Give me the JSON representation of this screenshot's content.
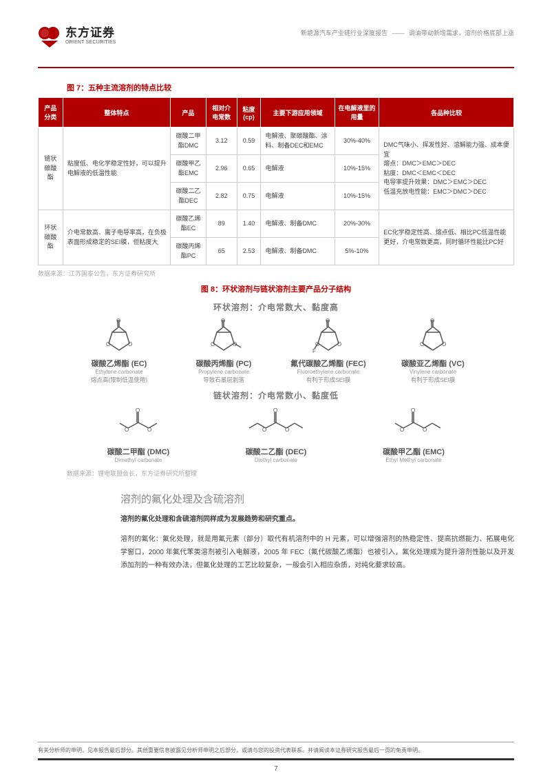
{
  "header": {
    "logo_cn": "东方证券",
    "logo_en": "ORIENT SECURITIES",
    "doc_title_left": "新能源汽车产业链行业深度报告",
    "doc_title_right": "调油带动新增需求，溶剂价格底部上涨"
  },
  "figure7": {
    "caption": "图 7：五种主流溶剂的特点比较",
    "columns": [
      "产品分类",
      "整体特点",
      "产品",
      "相对介电常数",
      "粘度(cp)",
      "主要下游应用领域",
      "在电解液里的用量",
      "各品种比较"
    ],
    "groups": [
      {
        "cat": "链状碳酸酯",
        "trait": "粘度低、电化学稳定性好，可以提升电解液的低温性能",
        "rows": [
          {
            "name": "碳酸二甲酯DMC",
            "perm": "3.12",
            "visc": "0.59",
            "app": "电解液、聚碳酸酯、涂料、制备DEC和EMC",
            "usage": "30%-40%"
          },
          {
            "name": "碳酸甲乙酯EMC",
            "perm": "2.96",
            "visc": "0.65",
            "app": "电解液",
            "usage": "10%-15%"
          },
          {
            "name": "碳酸二乙酯DEC",
            "perm": "2.82",
            "visc": "0.75",
            "app": "电解液",
            "usage": "10%-15%"
          }
        ],
        "compare": "DMC气味小、挥发性好、溶解能力强、成本便宜\n熔点：DMC＞EMC＞DEC\n粘度：DMC＜EMC＜DEC\n电导率提升效果：DMC＞EMC＞DEC\n低温充放电性能：EMC＞DMC＞DEC"
      },
      {
        "cat": "环状碳酸酯",
        "trait": "介电常数高、离子电导率高，在负极表面形成稳定的SEI膜，但粘度大",
        "rows": [
          {
            "name": "碳酸乙烯酯EC",
            "perm": "89",
            "visc": "1.40",
            "app": "电解液、制备DMC",
            "usage": "20%-30%"
          },
          {
            "name": "碳酸丙烯酯PC",
            "perm": "65",
            "visc": "2.53",
            "app": "电解液、制备DMC",
            "usage": "5%-10%"
          }
        ],
        "compare": "EC化学稳定性高、熔点低、相比PC低温性能更好，介电常数更高，同时循环性能比PC好"
      }
    ],
    "source": "数据来源：江苏国泰公告，东方证券研究所"
  },
  "figure8": {
    "caption": "图 8：环状溶剂与链状溶剂主要产品分子结构",
    "heading_ring": "环状溶剂：介电常数大、黏度高",
    "heading_chain": "链状溶剂：介电常数小、黏度低",
    "ring": [
      {
        "cn": "碳酸乙烯酯 (EC)",
        "en": "Ethylene carbonate",
        "note": "熔点高(限制低温使用)"
      },
      {
        "cn": "碳酸丙烯酯 (PC)",
        "en": "Propylene carbonate",
        "note": "导致石墨层剥落"
      },
      {
        "cn": "氟代碳酸乙烯酯 (FEC)",
        "en": "Fluoroethylene carbonate",
        "note": "有利于形成SEI膜"
      },
      {
        "cn": "碳酸亚乙烯酯 (VC)",
        "en": "Vinylene carbonate",
        "note": "有利于形成SEI膜"
      }
    ],
    "chain": [
      {
        "cn": "碳酸二甲酯 (DMC)",
        "en": "Dimethyl carbonate"
      },
      {
        "cn": "碳酸二乙酯 (DEC)",
        "en": "Diethyl carbonate"
      },
      {
        "cn": "碳酸甲乙酯 (EMC)",
        "en": "Ethyl Methyl carbonate"
      }
    ],
    "source": "数据来源：锂电联盟会长，东方证券研究所整理"
  },
  "section": {
    "title": "溶剂的氟化处理及含硫溶剂",
    "p1": "溶剂的氟化处理和含硫溶剂同样成为发展趋势和研究重点。",
    "p2": "溶剂的氟化：氟化处理，就是用氟元素（部分）取代有机溶剂中的 H 元素，可以增强溶剂的热稳定性、提高抗燃能力、拓展电化学窗口，2000 年氟代苯类溶剂被引入电解液，2005 年 FEC（氟代碳酸乙烯酯）也被引入，氟化处理成为提升溶剂性能以及开发添加剂的一种有效办法，但氟化处理的工艺比较复杂，一般会引入相应杂质，对纯化要求较高。"
  },
  "footer": {
    "disclaimer": "有关分析师的申明，见本报告最后部分。其他重要信息披露见分析师申明之后部分，或请与您的投资代表联系。并请阅读本证券研究报告最后一页的免责申明。",
    "page_num": "7"
  },
  "style": {
    "brand_red": "#b20000",
    "caption_red": "#c00000"
  }
}
